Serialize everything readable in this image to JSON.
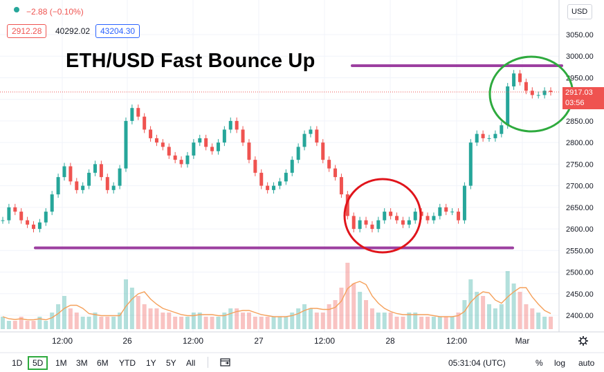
{
  "header": {
    "change": "−2.88 (−0.10%)",
    "sell_price": "2912.28",
    "spread": "40292.02",
    "buy_price": "43204.30"
  },
  "currency_select": "USD",
  "annotation_title": "ETH/USD Fast Bounce Up",
  "price_label": {
    "value": "2917.03",
    "countdown": "03:56"
  },
  "timeframes": [
    "1D",
    "5D",
    "1M",
    "3M",
    "6M",
    "YTD",
    "1Y",
    "5Y",
    "All"
  ],
  "active_timeframe": "5D",
  "footer": {
    "time": "05:31:04 (UTC)",
    "percent": "%",
    "log": "log",
    "auto": "auto"
  },
  "colors": {
    "up": "#26a69a",
    "down": "#ef5350",
    "support_resistance": "#9c3fa0",
    "circle_red": "#e0141b",
    "circle_green": "#2eaa3e",
    "volume_ma": "#f5a05a"
  },
  "chart_data": {
    "type": "line",
    "title": "ETH/USD Fast Bounce Up",
    "y_ticks": [
      "3050.00",
      "3000.00",
      "2950.00",
      "2900.00",
      "2850.00",
      "2800.00",
      "2750.00",
      "2700.00",
      "2650.00",
      "2600.00",
      "2550.00",
      "2500.00",
      "2450.00",
      "2400.00"
    ],
    "x_ticks": [
      "12:00",
      "26",
      "12:00",
      "27",
      "12:00",
      "28",
      "12:00",
      "Mar"
    ],
    "ylim": [
      2370,
      3070
    ],
    "series": [
      {
        "values": [
          2620,
          2650,
          2640,
          2620,
          2610,
          2600,
          2615,
          2640,
          2680,
          2720,
          2745,
          2710,
          2690,
          2700,
          2730,
          2750,
          2720,
          2690,
          2700,
          2740,
          2850,
          2880,
          2860,
          2830,
          2810,
          2800,
          2790,
          2770,
          2760,
          2750,
          2770,
          2800,
          2810,
          2790,
          2780,
          2800,
          2830,
          2850,
          2830,
          2800,
          2760,
          2730,
          2700,
          2690,
          2700,
          2710,
          2730,
          2760,
          2790,
          2820,
          2830,
          2800,
          2760,
          2740,
          2720,
          2680,
          2630,
          2600,
          2620,
          2610,
          2600,
          2620,
          2640,
          2630,
          2620,
          2610,
          2620,
          2640,
          2630,
          2620,
          2630,
          2650,
          2640,
          2640,
          2620,
          2700,
          2800,
          2820,
          2810,
          2810,
          2820,
          2840,
          2930,
          2960,
          2940,
          2920,
          2910,
          2910,
          2920,
          2917
        ]
      }
    ],
    "support_level": 2556,
    "resistance_level": 2978,
    "current_price": 2917.03,
    "volume": {
      "values": [
        3,
        2,
        2,
        3,
        2,
        2,
        3,
        2,
        4,
        6,
        8,
        5,
        4,
        3,
        3,
        4,
        3,
        3,
        3,
        4,
        12,
        10,
        8,
        6,
        5,
        5,
        4,
        4,
        3,
        3,
        3,
        4,
        4,
        3,
        3,
        3,
        4,
        5,
        5,
        4,
        4,
        3,
        3,
        3,
        3,
        3,
        3,
        4,
        5,
        6,
        5,
        4,
        4,
        6,
        7,
        10,
        16,
        11,
        9,
        7,
        5,
        4,
        4,
        4,
        3,
        3,
        4,
        4,
        3,
        3,
        3,
        3,
        3,
        3,
        4,
        7,
        12,
        9,
        8,
        6,
        5,
        6,
        14,
        11,
        9,
        6,
        5,
        4,
        3,
        3
      ]
    }
  }
}
